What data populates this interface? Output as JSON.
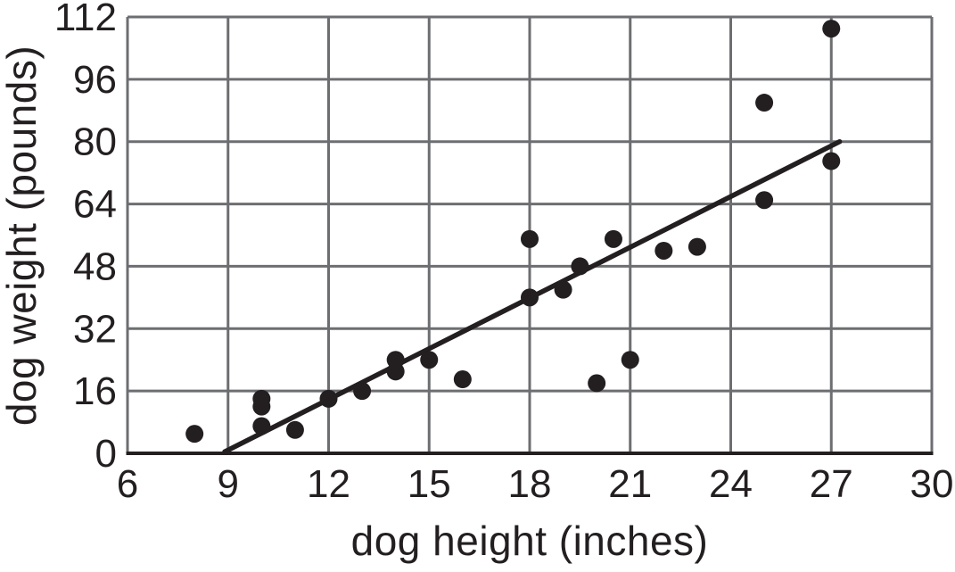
{
  "figure": {
    "background": "#ffffff"
  },
  "chart_data": {
    "type": "scatter",
    "title": "",
    "xlabel": "dog height (inches)",
    "ylabel": "dog weight (pounds)",
    "xlim": [
      6,
      30
    ],
    "ylim": [
      0,
      112
    ],
    "xticks": [
      6,
      9,
      12,
      15,
      18,
      21,
      24,
      27,
      30
    ],
    "yticks": [
      0,
      16,
      32,
      48,
      64,
      80,
      96,
      112
    ],
    "grid": true,
    "legend": "none",
    "points": [
      [
        8,
        5
      ],
      [
        10,
        7
      ],
      [
        10,
        12
      ],
      [
        10,
        14
      ],
      [
        11,
        6
      ],
      [
        12,
        14
      ],
      [
        13,
        16
      ],
      [
        14,
        21
      ],
      [
        14,
        24
      ],
      [
        15,
        24
      ],
      [
        16,
        19
      ],
      [
        18,
        40
      ],
      [
        18,
        55
      ],
      [
        19,
        42
      ],
      [
        19.5,
        48
      ],
      [
        20,
        18
      ],
      [
        20.5,
        55
      ],
      [
        21,
        24
      ],
      [
        22,
        52
      ],
      [
        23,
        53
      ],
      [
        25,
        65
      ],
      [
        25,
        90
      ],
      [
        27,
        75
      ],
      [
        27,
        109
      ]
    ],
    "trend_line": {
      "x1": 8.9,
      "y1": 0.4,
      "x2": 27.25,
      "y2": 80
    },
    "colors": {
      "grid": "#6d6e71",
      "axis": "#231f20",
      "point": "#231f20",
      "trend": "#231f20",
      "text": "#231f20"
    }
  }
}
